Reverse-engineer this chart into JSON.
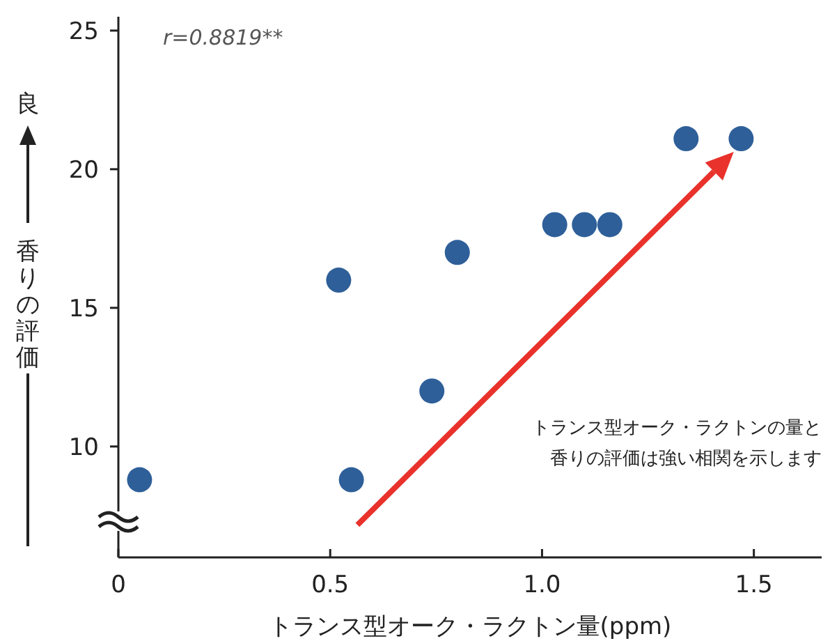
{
  "chart_data": {
    "type": "scatter",
    "xlabel": "トランス型オーク・ラクトン量(ppm)",
    "ylabel": "香りの評価",
    "annotations": [
      "r=0.8819**",
      "トランス型オーク・ラクトンの量と",
      "香りの評価は強い相関を示します",
      "良"
    ],
    "x": [
      0.05,
      0.52,
      0.55,
      0.74,
      0.8,
      1.03,
      1.1,
      1.16,
      1.34,
      1.47
    ],
    "series": [
      {
        "color": "#2e5f99",
        "values": [
          8.8,
          16.0,
          8.8,
          12.0,
          17.0,
          18.0,
          18.0,
          18.0,
          21.1,
          21.1
        ]
      }
    ],
    "xlim": [
      0,
      1.66
    ],
    "ylim": [
      6,
      25.5
    ],
    "xticks": [
      0,
      {
        "value": 0.5,
        "label": "0.5"
      },
      {
        "value": 1.0,
        "label": "1.0"
      },
      {
        "value": 1.5,
        "label": "1.5"
      }
    ],
    "yticks": [
      10,
      15,
      20,
      25
    ],
    "marker": "circle",
    "grid": false
  }
}
